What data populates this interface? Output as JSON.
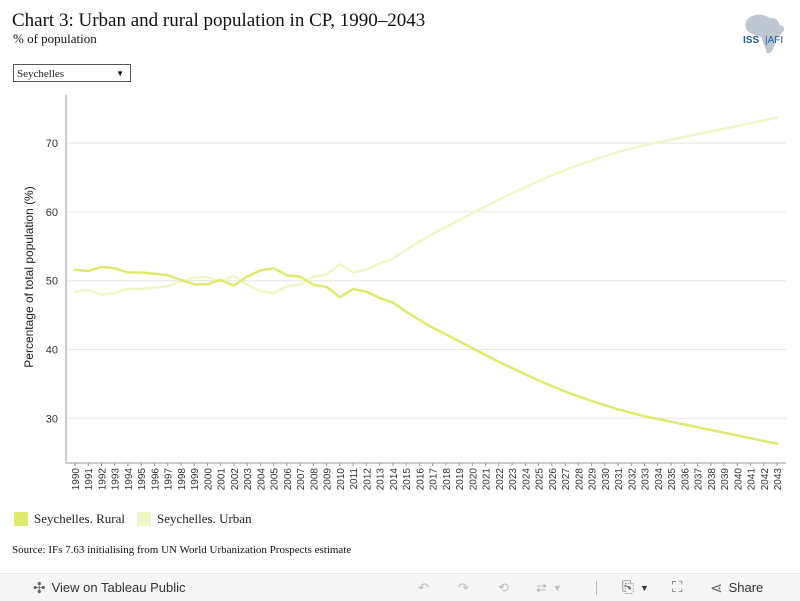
{
  "header": {
    "title": "Chart 3: Urban and rural population in CP, 1990–2043",
    "subtitle": "% of population",
    "logo_text": "ISS|AFI"
  },
  "filter": {
    "selected": "Seychelles"
  },
  "source": "Source: IFs 7.63 initialising from UN World Urbanization Prospects estimate",
  "colors": {
    "rural": "#e1e870",
    "urban": "#f3f5c9",
    "grid": "#e6e6e6",
    "axis": "#999999"
  },
  "toolbar": {
    "view_label": "View on Tableau Public",
    "share_label": "Share"
  },
  "chart_data": {
    "type": "line",
    "ylabel": "Percentage of total population (%)",
    "xlabel": "",
    "ylim": [
      23.5,
      77
    ],
    "yticks": [
      30,
      40,
      50,
      60,
      70
    ],
    "grid": true,
    "legend_position": "bottom-left",
    "x": [
      1990,
      1991,
      1992,
      1993,
      1994,
      1995,
      1996,
      1997,
      1998,
      1999,
      2000,
      2001,
      2002,
      2003,
      2004,
      2005,
      2006,
      2007,
      2008,
      2009,
      2010,
      2011,
      2012,
      2013,
      2014,
      2015,
      2016,
      2017,
      2018,
      2019,
      2020,
      2021,
      2022,
      2023,
      2024,
      2025,
      2026,
      2027,
      2028,
      2029,
      2030,
      2031,
      2032,
      2033,
      2034,
      2035,
      2036,
      2037,
      2038,
      2039,
      2040,
      2041,
      2042,
      2043
    ],
    "series": [
      {
        "name": "Seychelles. Rural",
        "color": "#e1e870",
        "values": [
          51.6,
          51.4,
          52.0,
          51.8,
          51.2,
          51.2,
          51.0,
          50.8,
          50.1,
          49.5,
          49.5,
          50.1,
          49.3,
          50.6,
          51.5,
          51.8,
          50.8,
          50.6,
          49.4,
          49.1,
          47.6,
          48.8,
          48.4,
          47.5,
          46.8,
          45.5,
          44.3,
          43.2,
          42.2,
          41.2,
          40.2,
          39.2,
          38.2,
          37.3,
          36.4,
          35.5,
          34.7,
          33.9,
          33.2,
          32.5,
          31.9,
          31.3,
          30.8,
          30.3,
          29.9,
          29.5,
          29.1,
          28.7,
          28.3,
          27.9,
          27.5,
          27.1,
          26.7,
          26.3
        ]
      },
      {
        "name": "Seychelles. Urban",
        "color": "#f3f5c9",
        "values": [
          48.4,
          48.6,
          48.0,
          48.2,
          48.8,
          48.8,
          49.0,
          49.2,
          49.9,
          50.5,
          50.5,
          49.9,
          50.7,
          49.4,
          48.5,
          48.2,
          49.2,
          49.4,
          50.6,
          50.9,
          52.4,
          51.2,
          51.6,
          52.5,
          53.2,
          54.5,
          55.7,
          56.8,
          57.8,
          58.8,
          59.8,
          60.8,
          61.8,
          62.7,
          63.6,
          64.5,
          65.3,
          66.1,
          66.8,
          67.5,
          68.1,
          68.7,
          69.2,
          69.7,
          70.1,
          70.5,
          70.9,
          71.3,
          71.7,
          72.1,
          72.5,
          72.9,
          73.3,
          73.7
        ]
      }
    ]
  }
}
